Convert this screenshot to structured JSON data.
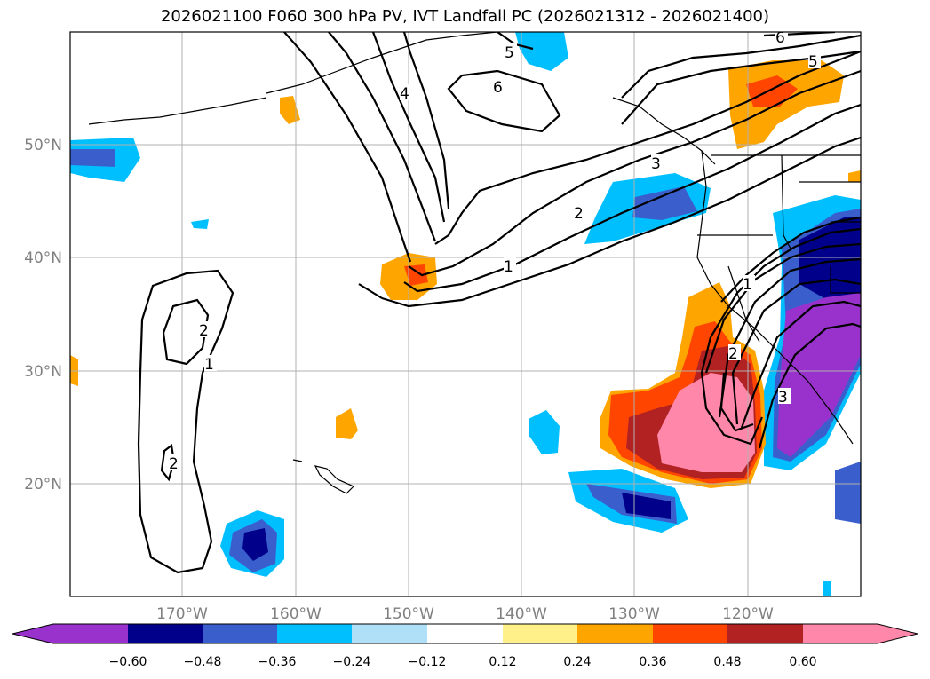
{
  "title": "2026021100 F060 300 hPa PV, IVT Landfall PC (2026021312 - 2026021400)",
  "lon_labels": [
    "170°W",
    "160°W",
    "150°W",
    "140°W",
    "130°W",
    "120°W"
  ],
  "lat_labels": [
    "50°N",
    "40°N",
    "30°N",
    "20°N"
  ],
  "colorbar": {
    "ticks": [
      "−0.60",
      "−0.48",
      "−0.36",
      "−0.24",
      "−0.12",
      "0.12",
      "0.24",
      "0.36",
      "0.48",
      "0.60"
    ],
    "colors": [
      "#9932cc",
      "#00008b",
      "#3a5fcd",
      "#00bfff",
      "#b0e0f8",
      "#ffffff",
      "#fff08a",
      "#ffa500",
      "#ff4500",
      "#b22222",
      "#ff88aa",
      "#ff88aa"
    ]
  },
  "contour_labels": [
    "1",
    "2",
    "3",
    "4",
    "5",
    "6"
  ],
  "map": {
    "lon_range": [
      -180,
      -110
    ],
    "lat_range": [
      10,
      60
    ],
    "gridlines": true
  }
}
